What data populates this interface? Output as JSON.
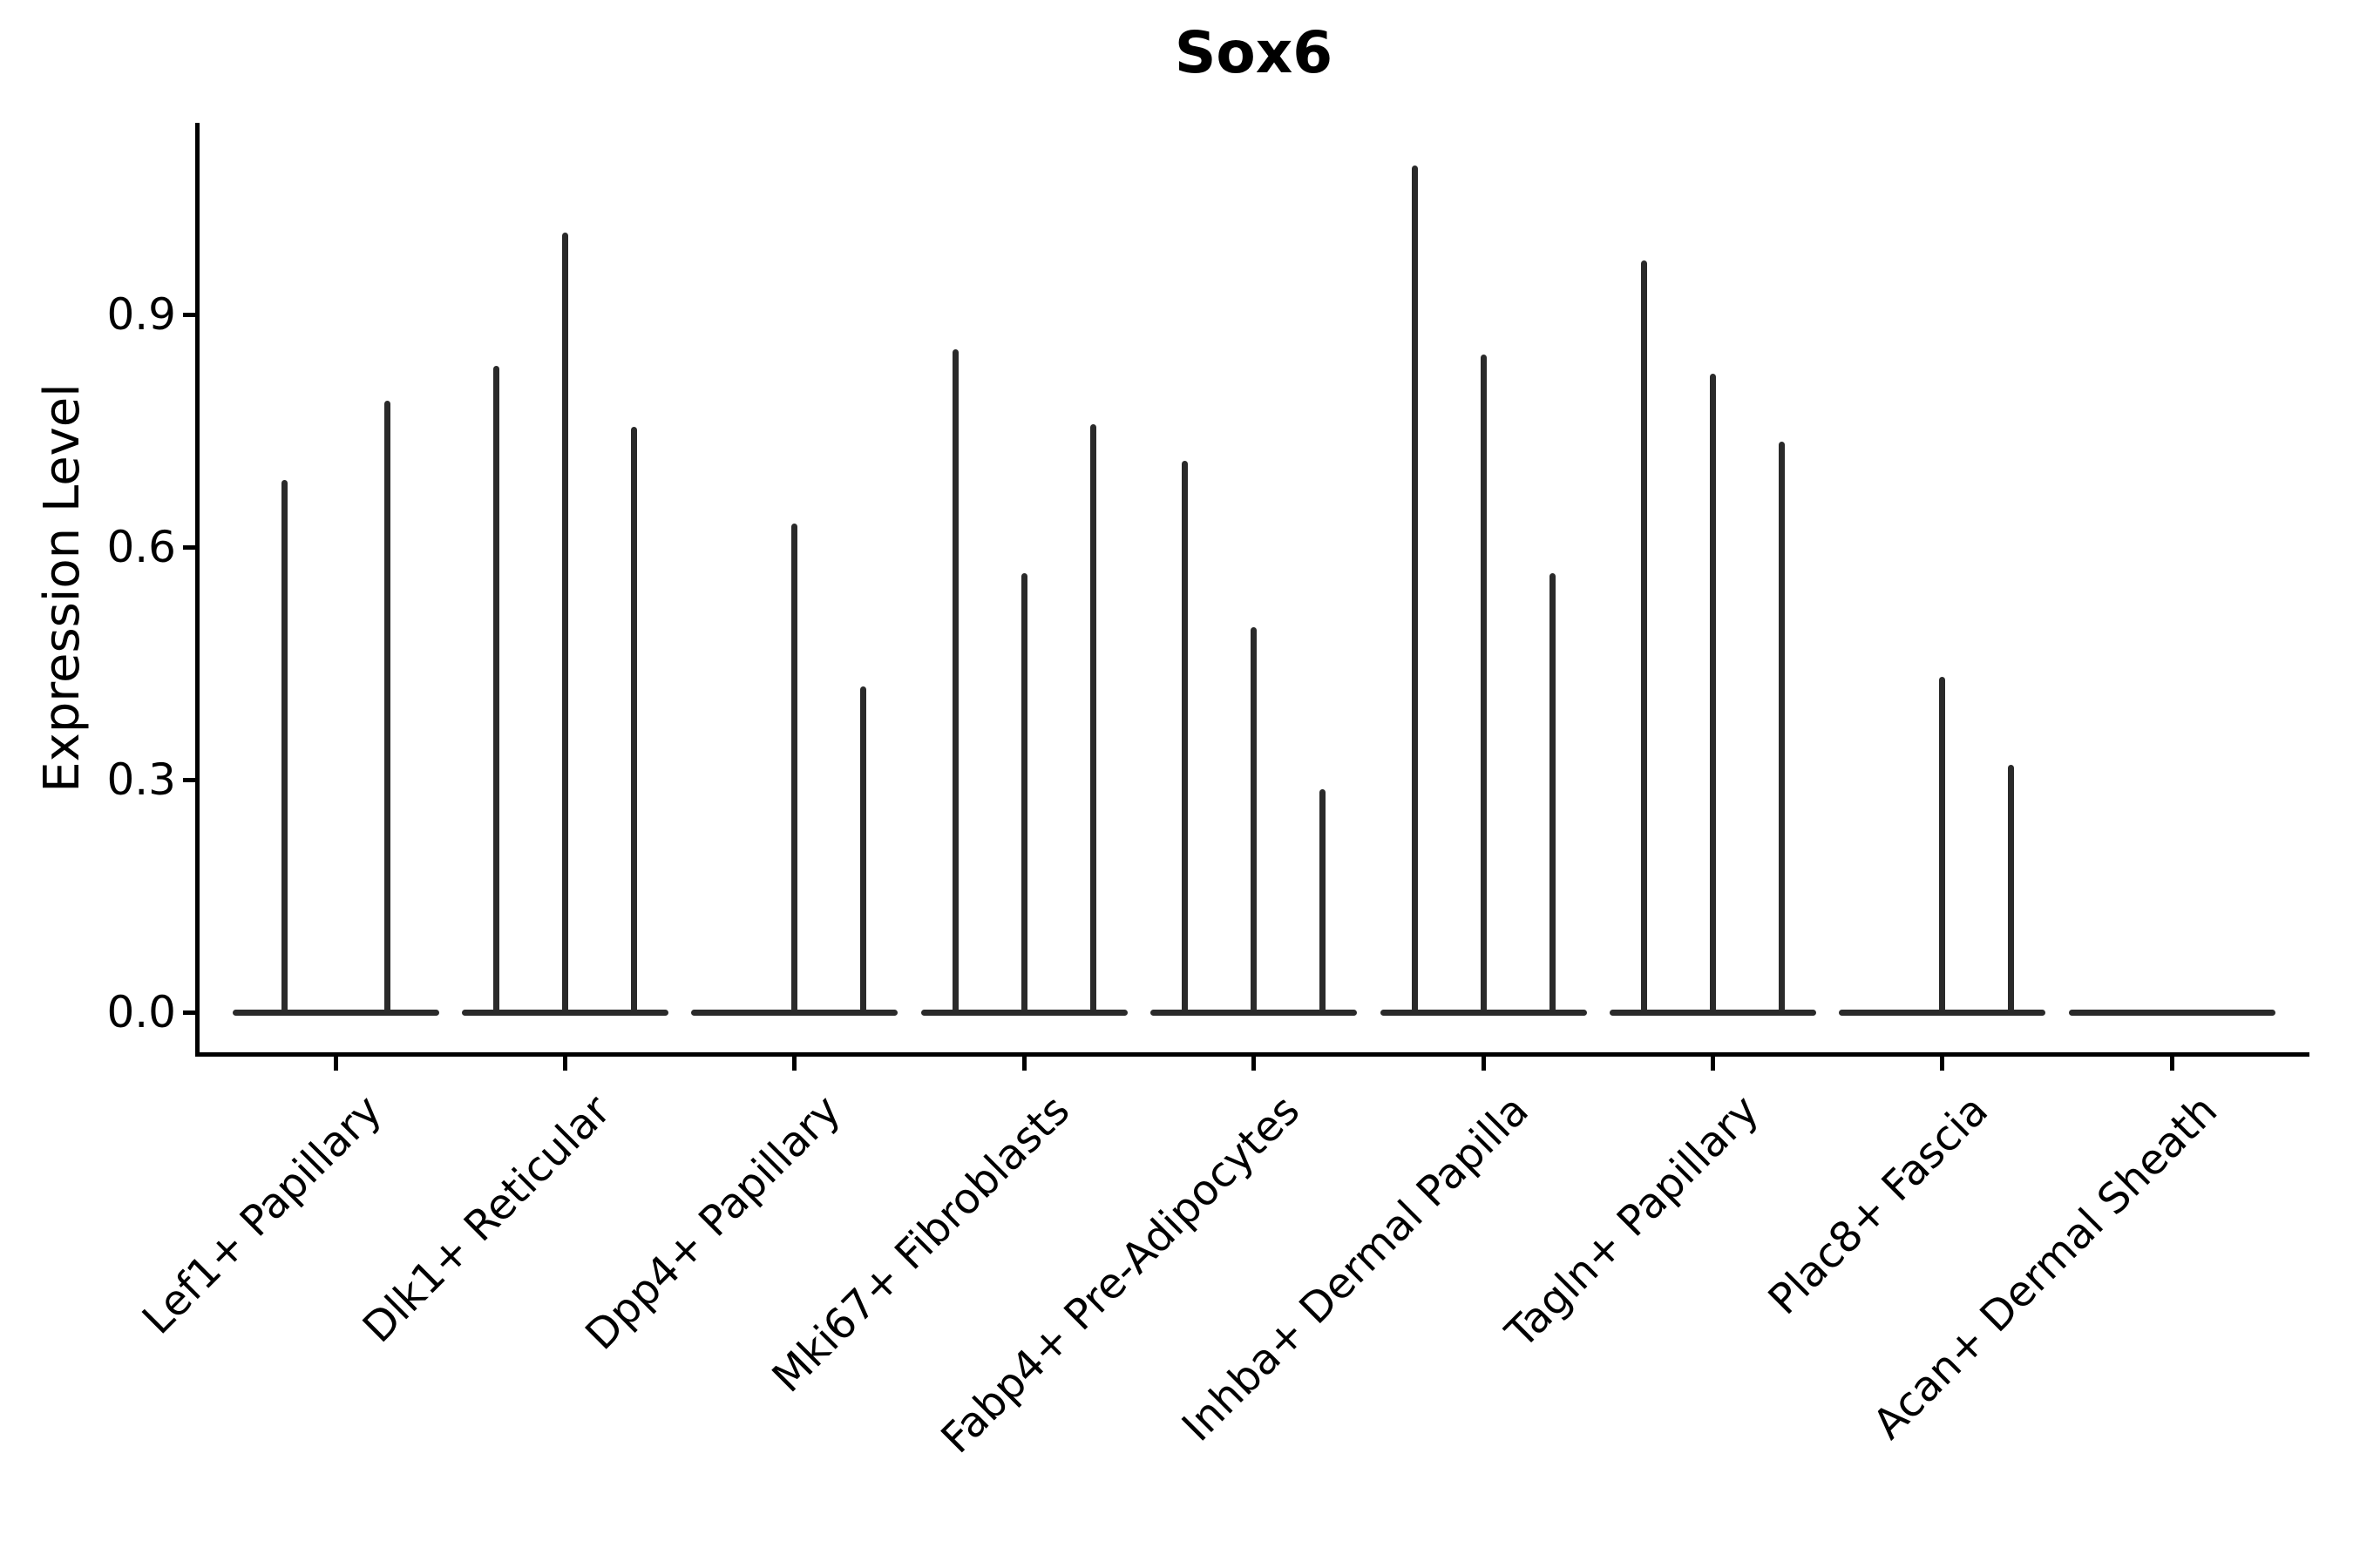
{
  "chart_data": {
    "type": "violin",
    "title": "Sox6",
    "ylabel": "Expression Level",
    "xlabel": "",
    "ytick_labels": [
      "0.0",
      "0.3",
      "0.6",
      "0.9"
    ],
    "ytick_values": [
      0.0,
      0.3,
      0.6,
      0.9
    ],
    "ylim": [
      -0.054,
      1.148
    ],
    "grid": false,
    "legend": "none",
    "violin_color": "#2a2a2a",
    "axis_color": "#000000",
    "categories": [
      "Lef1+ Papillary",
      "Dlk1+ Reticular",
      "Dpp4+ Papillary",
      "Mki67+ Fibroblasts",
      "Fabp4+ Pre-Adipocytes",
      "Inhba+ Dermal Papilla",
      "Tagln+ Papillary",
      "Plac8+ Fascia",
      "Acan+ Dermal Sheath"
    ],
    "violins": [
      {
        "category": "Lef1+ Papillary",
        "base": true,
        "slots": [
          {
            "offset": -0.224,
            "max": 0.686
          },
          {
            "offset": 0.224,
            "max": 0.789
          }
        ]
      },
      {
        "category": "Dlk1+ Reticular",
        "base": true,
        "slots": [
          {
            "offset": -0.3,
            "max": 0.834
          },
          {
            "offset": 0.0,
            "max": 1.006
          },
          {
            "offset": 0.3,
            "max": 0.755
          }
        ]
      },
      {
        "category": "Dpp4+ Papillary",
        "base": true,
        "slots": [
          {
            "offset": 0.0,
            "max": 0.63
          },
          {
            "offset": 0.3,
            "max": 0.42
          }
        ]
      },
      {
        "category": "Mki67+ Fibroblasts",
        "base": true,
        "slots": [
          {
            "offset": -0.3,
            "max": 0.855
          },
          {
            "offset": 0.0,
            "max": 0.566
          },
          {
            "offset": 0.3,
            "max": 0.758
          }
        ]
      },
      {
        "category": "Fabp4+ Pre-Adipocytes",
        "base": true,
        "slots": [
          {
            "offset": -0.3,
            "max": 0.711
          },
          {
            "offset": 0.0,
            "max": 0.497
          },
          {
            "offset": 0.3,
            "max": 0.288
          }
        ]
      },
      {
        "category": "Inhba+ Dermal Papilla",
        "base": true,
        "slots": [
          {
            "offset": -0.3,
            "max": 1.092
          },
          {
            "offset": 0.0,
            "max": 0.848
          },
          {
            "offset": 0.3,
            "max": 0.566
          }
        ]
      },
      {
        "category": "Tagln+ Papillary",
        "base": true,
        "slots": [
          {
            "offset": -0.3,
            "max": 0.97
          },
          {
            "offset": 0.0,
            "max": 0.824
          },
          {
            "offset": 0.3,
            "max": 0.736
          }
        ]
      },
      {
        "category": "Plac8+ Fascia",
        "base": true,
        "slots": [
          {
            "offset": 0.0,
            "max": 0.433
          },
          {
            "offset": 0.3,
            "max": 0.319
          }
        ]
      },
      {
        "category": "Acan+ Dermal Sheath",
        "base": true,
        "slots": []
      }
    ]
  }
}
